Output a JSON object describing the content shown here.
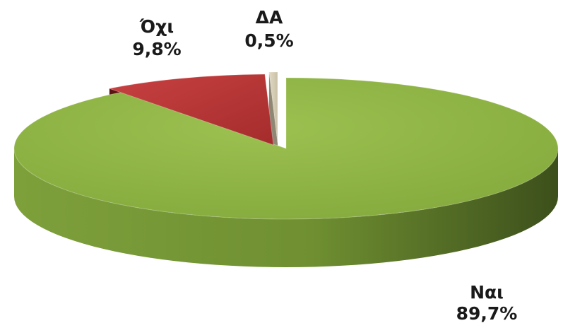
{
  "chart_data": {
    "type": "pie",
    "title": "",
    "legend": "none",
    "slices": [
      {
        "label": "Ναι",
        "value": 89.7,
        "value_label": "89,7%",
        "color": "#8db443"
      },
      {
        "label": "Όχι",
        "value": 9.8,
        "value_label": "9,8%",
        "color": "#c0393a"
      },
      {
        "label": "ΔΑ",
        "value": 0.5,
        "value_label": "0,5%",
        "color": "#d6cdb5"
      }
    ]
  }
}
